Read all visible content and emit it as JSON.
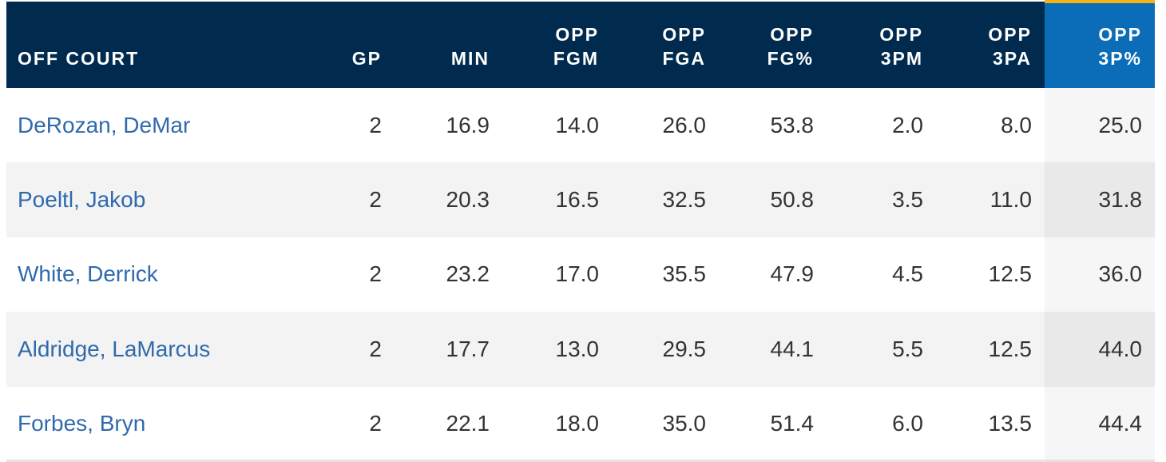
{
  "table": {
    "columns": [
      {
        "id": "player",
        "line1": "",
        "line2": "OFF COURT"
      },
      {
        "id": "gp",
        "line1": "",
        "line2": "GP"
      },
      {
        "id": "min",
        "line1": "",
        "line2": "MIN"
      },
      {
        "id": "opp_fgm",
        "line1": "OPP",
        "line2": "FGM"
      },
      {
        "id": "opp_fga",
        "line1": "OPP",
        "line2": "FGA"
      },
      {
        "id": "opp_fg_pct",
        "line1": "OPP",
        "line2": "FG%"
      },
      {
        "id": "opp_3pm",
        "line1": "OPP",
        "line2": "3PM"
      },
      {
        "id": "opp_3pa",
        "line1": "OPP",
        "line2": "3PA"
      },
      {
        "id": "opp_3p_pct",
        "line1": "OPP",
        "line2": "3P%"
      }
    ],
    "sorted_column": "opp_3p_pct",
    "rows": [
      {
        "player": "DeRozan, DeMar",
        "gp": "2",
        "min": "16.9",
        "opp_fgm": "14.0",
        "opp_fga": "26.0",
        "opp_fg_pct": "53.8",
        "opp_3pm": "2.0",
        "opp_3pa": "8.0",
        "opp_3p_pct": "25.0"
      },
      {
        "player": "Poeltl, Jakob",
        "gp": "2",
        "min": "20.3",
        "opp_fgm": "16.5",
        "opp_fga": "32.5",
        "opp_fg_pct": "50.8",
        "opp_3pm": "3.5",
        "opp_3pa": "11.0",
        "opp_3p_pct": "31.8"
      },
      {
        "player": "White, Derrick",
        "gp": "2",
        "min": "23.2",
        "opp_fgm": "17.0",
        "opp_fga": "35.5",
        "opp_fg_pct": "47.9",
        "opp_3pm": "4.5",
        "opp_3pa": "12.5",
        "opp_3p_pct": "36.0"
      },
      {
        "player": "Aldridge, LaMarcus",
        "gp": "2",
        "min": "17.7",
        "opp_fgm": "13.0",
        "opp_fga": "29.5",
        "opp_fg_pct": "44.1",
        "opp_3pm": "5.5",
        "opp_3pa": "12.5",
        "opp_3p_pct": "44.0"
      },
      {
        "player": "Forbes, Bryn",
        "gp": "2",
        "min": "22.1",
        "opp_fgm": "18.0",
        "opp_fga": "35.0",
        "opp_fg_pct": "51.4",
        "opp_3pm": "6.0",
        "opp_3pa": "13.5",
        "opp_3p_pct": "44.4"
      }
    ]
  },
  "colors": {
    "header_bg": "#002b4e",
    "sorted_header_bg": "#0b6cb8",
    "sorted_accent": "#f5b416",
    "player_link": "#2f6aad"
  }
}
